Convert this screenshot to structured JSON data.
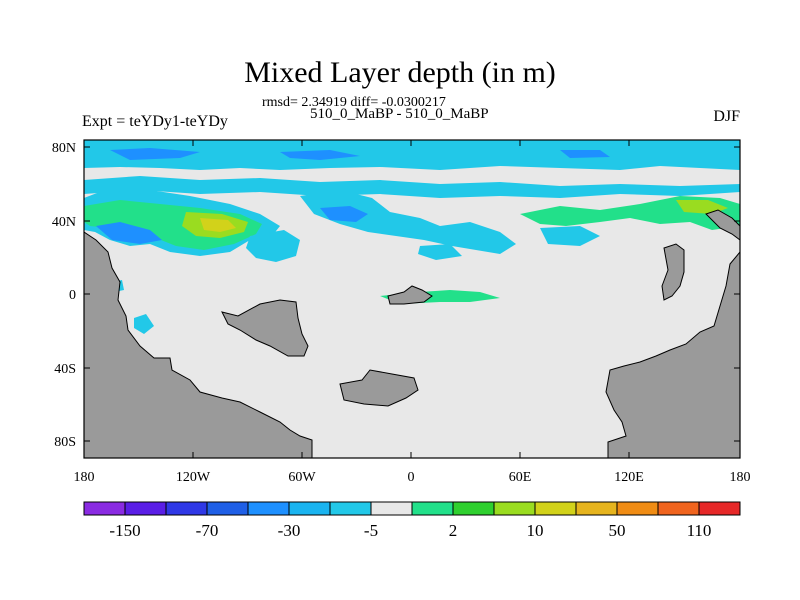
{
  "header": {
    "title": "Mixed Layer depth (in m)",
    "stats": "rmsd= 2.34919 diff= -0.0300217",
    "subtitle": "510_0_MaBP - 510_0_MaBP",
    "left_label": "Expt = teYDy1-teYDy",
    "right_label": "DJF"
  },
  "axes": {
    "x_ticks": [
      "180",
      "120W",
      "60W",
      "0",
      "60E",
      "120E",
      "180"
    ],
    "y_ticks": [
      "80N",
      "40N",
      "0",
      "40S",
      "80S"
    ]
  },
  "colorbar": {
    "colors": [
      "#8a2be2",
      "#5a1ee6",
      "#2f38e6",
      "#1f5fe6",
      "#1e90ff",
      "#1ab4f0",
      "#22c8e8",
      "#e8e8e8",
      "#22e08a",
      "#2fd02f",
      "#9adc20",
      "#d2d21a",
      "#e6b41e",
      "#f08c14",
      "#f0641e",
      "#e62828"
    ],
    "labels": [
      "-150",
      "-70",
      "-30",
      "-5",
      "2",
      "10",
      "50",
      "110"
    ]
  },
  "map_colors": {
    "land": "#9a9a9a",
    "ocean_neutral": "#e8e8e8",
    "band_light_blue": "#22c8e8",
    "band_blue": "#1e90ff",
    "band_green": "#22e08a",
    "band_yellow_green": "#9adc20",
    "band_yellow": "#d2d21a"
  }
}
